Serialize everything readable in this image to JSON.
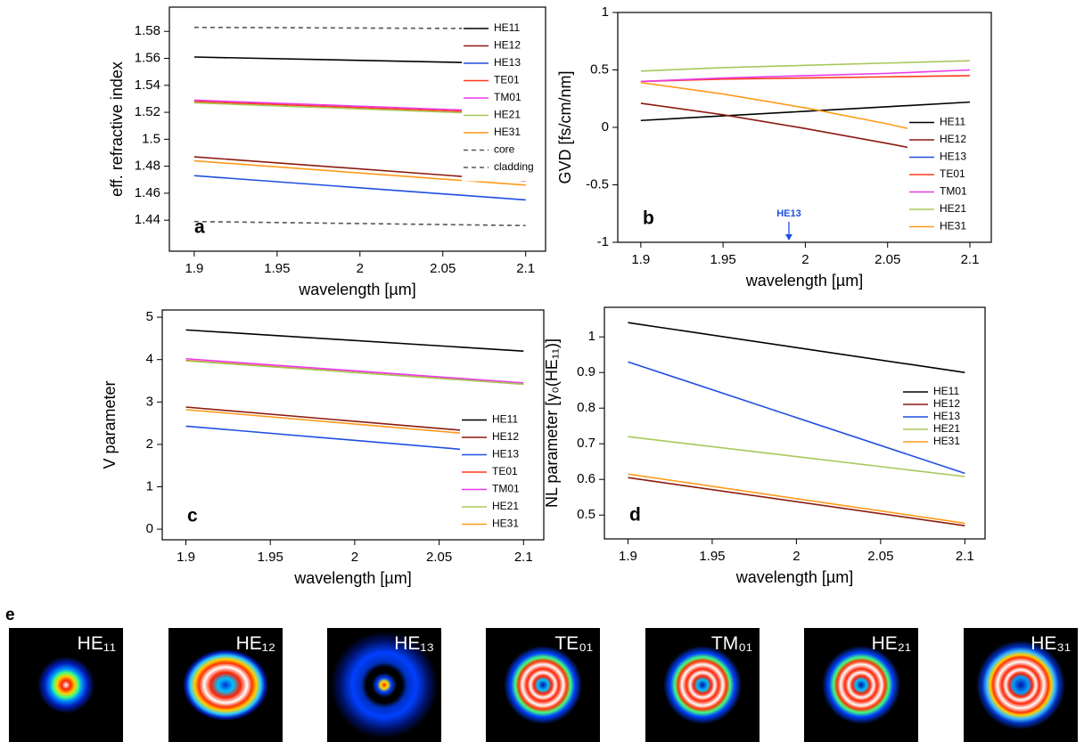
{
  "chart_data": [
    {
      "type": "line",
      "panel_label": "a",
      "xlabel": "wavelength [µm]",
      "ylabel": "eff. refractive index",
      "x": [
        1.9,
        2.1
      ],
      "xlim": [
        1.885,
        2.112
      ],
      "xticks": [
        1.9,
        1.95,
        2,
        2.05,
        2.1
      ],
      "ylim": [
        1.417,
        1.598
      ],
      "yticks": [
        1.44,
        1.46,
        1.48,
        1.5,
        1.52,
        1.54,
        1.56,
        1.58
      ],
      "legend": "upper right",
      "series": [
        {
          "name": "HE11",
          "color": "#000000",
          "values": [
            1.561,
            1.556
          ]
        },
        {
          "name": "HE12",
          "color": "#8b1a10",
          "values": [
            1.487,
            1.469
          ]
        },
        {
          "name": "HE13",
          "color": "#1f4fe0",
          "values": [
            1.473,
            1.455
          ]
        },
        {
          "name": "TE01",
          "color": "#ff3a1a",
          "values": [
            1.528,
            1.519
          ]
        },
        {
          "name": "TM01",
          "color": "#e83ce8",
          "values": [
            1.529,
            1.52
          ]
        },
        {
          "name": "HE21",
          "color": "#a8c85a",
          "values": [
            1.527,
            1.518
          ]
        },
        {
          "name": "HE31",
          "color": "#ff9a1a",
          "values": [
            1.484,
            1.466
          ]
        },
        {
          "name": "core",
          "color": "#555555",
          "dash": true,
          "values": [
            1.583,
            1.582
          ]
        },
        {
          "name": "cladding",
          "color": "#555555",
          "dash": true,
          "values": [
            1.439,
            1.436
          ]
        }
      ]
    },
    {
      "type": "line",
      "panel_label": "b",
      "xlabel": "wavelength [µm]",
      "ylabel": "GVD [fs/cm/nm]",
      "x": [
        1.9,
        1.95,
        2,
        2.05,
        2.1
      ],
      "xlim": [
        1.886,
        2.113
      ],
      "xticks": [
        1.9,
        1.95,
        2,
        2.05,
        2.1
      ],
      "ylim": [
        -1,
        1
      ],
      "yticks": [
        -1,
        -0.5,
        0,
        0.5,
        1
      ],
      "legend": "lower right",
      "annotations": [
        {
          "text": "HE13",
          "x": 1.99,
          "color": "#1f4fe0"
        }
      ],
      "series": [
        {
          "name": "HE11",
          "color": "#000000",
          "values": [
            0.06,
            0.1,
            0.14,
            0.18,
            0.22
          ]
        },
        {
          "name": "HE12",
          "color": "#8b1a10",
          "values": [
            0.21,
            0.11,
            -0.01,
            -0.14,
            -0.28
          ]
        },
        {
          "name": "HE13",
          "color": "#1f4fe0",
          "values": [
            null,
            null,
            null,
            null,
            null
          ]
        },
        {
          "name": "TE01",
          "color": "#ff3a1a",
          "values": [
            0.4,
            0.42,
            0.43,
            0.44,
            0.45
          ]
        },
        {
          "name": "TM01",
          "color": "#e83ce8",
          "values": [
            0.4,
            0.43,
            0.45,
            0.47,
            0.5
          ]
        },
        {
          "name": "HE21",
          "color": "#a8c85a",
          "values": [
            0.49,
            0.52,
            0.54,
            0.56,
            0.58
          ]
        },
        {
          "name": "HE31",
          "color": "#ff9a1a",
          "values": [
            0.39,
            0.29,
            0.17,
            0.03,
            -0.13
          ]
        }
      ]
    },
    {
      "type": "line",
      "panel_label": "c",
      "xlabel": "wavelength [µm]",
      "ylabel": "V parameter",
      "x": [
        1.9,
        2.1
      ],
      "xlim": [
        1.886,
        2.112
      ],
      "xticks": [
        1.9,
        1.95,
        2,
        2.05,
        2.1
      ],
      "ylim": [
        -0.25,
        5.17
      ],
      "yticks": [
        0,
        1,
        2,
        3,
        4,
        5
      ],
      "legend": "lower right",
      "series": [
        {
          "name": "HE11",
          "color": "#000000",
          "values": [
            4.7,
            4.2
          ]
        },
        {
          "name": "HE12",
          "color": "#8b1a10",
          "values": [
            2.88,
            2.21
          ]
        },
        {
          "name": "HE13",
          "color": "#1f4fe0",
          "values": [
            2.43,
            1.76
          ]
        },
        {
          "name": "TE01",
          "color": "#ff3a1a",
          "values": [
            3.98,
            3.42
          ]
        },
        {
          "name": "TM01",
          "color": "#e83ce8",
          "values": [
            4.02,
            3.45
          ]
        },
        {
          "name": "HE21",
          "color": "#a8c85a",
          "values": [
            3.97,
            3.42
          ]
        },
        {
          "name": "HE31",
          "color": "#ff9a1a",
          "values": [
            2.82,
            2.14
          ]
        }
      ]
    },
    {
      "type": "line",
      "panel_label": "d",
      "xlabel": "wavelength [µm]",
      "ylabel": "NL parameter [γ₀(HE₁₁)]",
      "x": [
        1.9,
        2.1
      ],
      "xlim": [
        1.886,
        2.112
      ],
      "xticks": [
        1.9,
        1.95,
        2,
        2.05,
        2.1
      ],
      "ylim": [
        0.433,
        1.083
      ],
      "yticks": [
        0.5,
        0.6,
        0.7,
        0.8,
        0.9,
        1
      ],
      "legend": "center right",
      "series": [
        {
          "name": "HE11",
          "color": "#000000",
          "values": [
            1.04,
            0.9
          ]
        },
        {
          "name": "HE12",
          "color": "#8b1a10",
          "values": [
            0.605,
            0.47
          ]
        },
        {
          "name": "HE13",
          "color": "#1f4fe0",
          "values": [
            0.93,
            0.617
          ]
        },
        {
          "name": "HE21",
          "color": "#a8c85a",
          "values": [
            0.72,
            0.608
          ]
        },
        {
          "name": "HE31",
          "color": "#ff9a1a",
          "values": [
            0.615,
            0.477
          ]
        }
      ]
    }
  ],
  "mode_panel": {
    "label": "e",
    "modes": [
      "HE₁₁",
      "HE₁₂",
      "HE₁₃",
      "TE₀₁",
      "TM₀₁",
      "HE₂₁",
      "HE₃₁"
    ]
  }
}
